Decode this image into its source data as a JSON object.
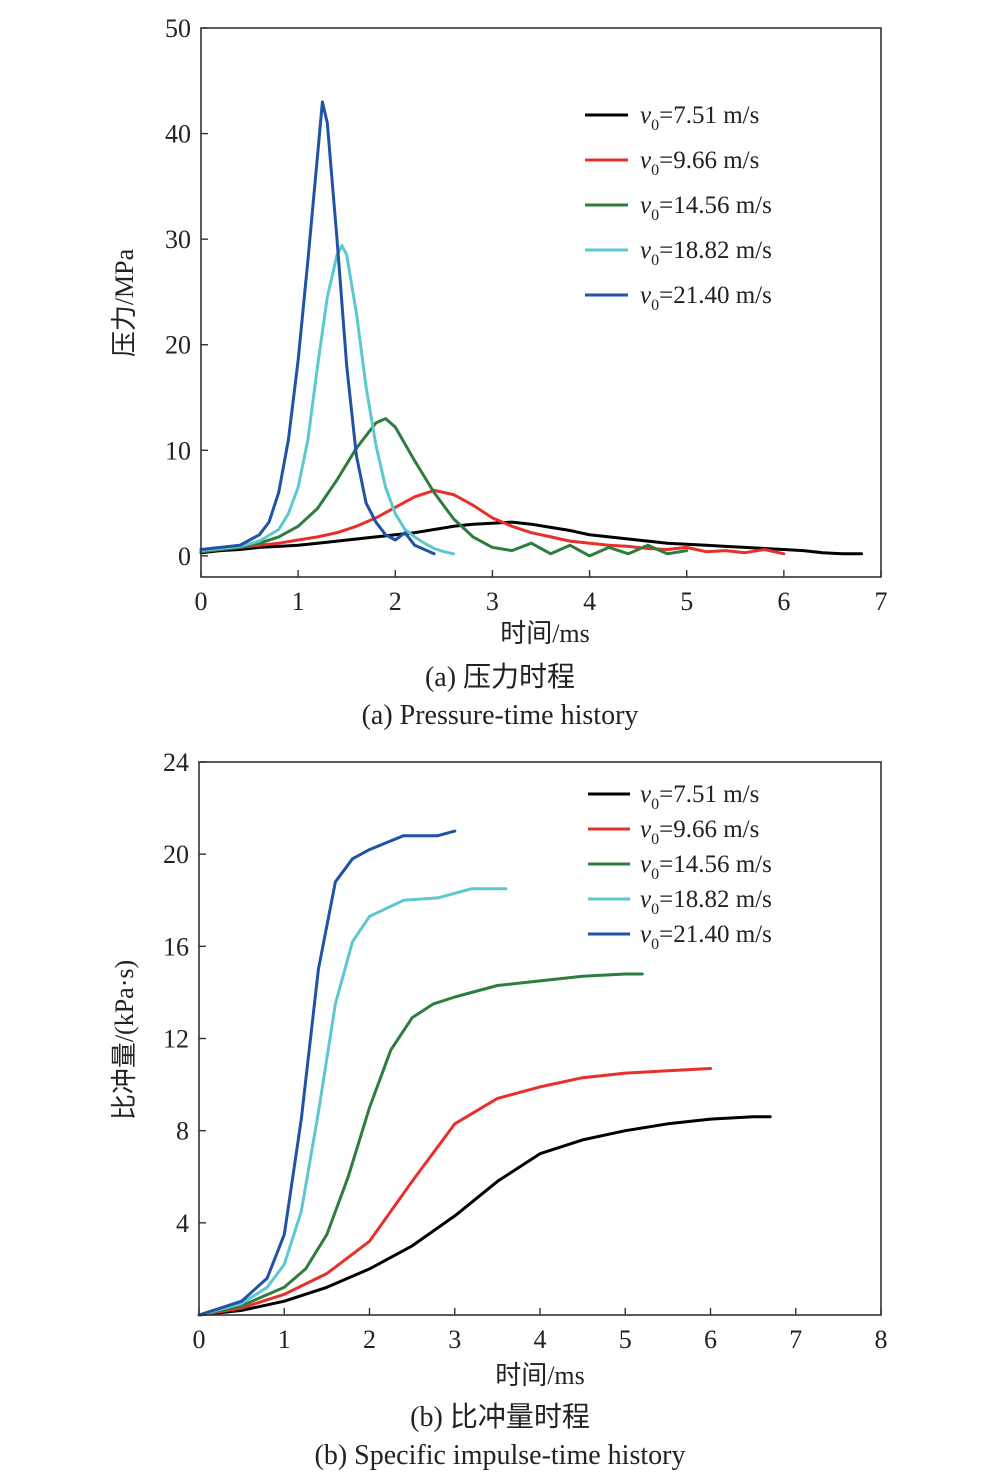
{
  "chart_data": [
    {
      "id": "a",
      "type": "line",
      "xlabel": "时间/ms",
      "ylabel": "压力/MPa",
      "xlim": [
        0,
        7
      ],
      "ylim": [
        -2,
        50
      ],
      "xticks": [
        "0",
        "1",
        "2",
        "3",
        "4",
        "5",
        "6",
        "7"
      ],
      "yticks": [
        "0",
        "10",
        "20",
        "30",
        "40",
        "50"
      ],
      "caption_cn": "(a) 压力时程",
      "caption_en": "(a) Pressure-time history",
      "legend_position": "top-right",
      "grid": false,
      "series": [
        {
          "name": "v0=7.51 m/s",
          "legend_var": "v",
          "legend_sub": "0",
          "legend_rest": "=7.51 m/s",
          "color": "#000000",
          "x": [
            0,
            0.2,
            0.4,
            0.6,
            0.8,
            1.0,
            1.2,
            1.4,
            1.6,
            1.8,
            2.0,
            2.2,
            2.4,
            2.6,
            2.8,
            3.0,
            3.2,
            3.4,
            3.6,
            3.8,
            4.0,
            4.2,
            4.4,
            4.6,
            4.8,
            5.0,
            5.2,
            5.4,
            5.6,
            5.8,
            6.0,
            6.2,
            6.4,
            6.6,
            6.8
          ],
          "y": [
            0.3,
            0.5,
            0.6,
            0.8,
            0.9,
            1.0,
            1.2,
            1.4,
            1.6,
            1.8,
            2.0,
            2.2,
            2.5,
            2.8,
            3.0,
            3.1,
            3.2,
            3.0,
            2.7,
            2.4,
            2.0,
            1.8,
            1.6,
            1.4,
            1.2,
            1.1,
            1.0,
            0.9,
            0.8,
            0.7,
            0.6,
            0.5,
            0.3,
            0.2,
            0.2
          ]
        },
        {
          "name": "v0=9.66 m/s",
          "legend_var": "v",
          "legend_sub": "0",
          "legend_rest": "=9.66 m/s",
          "color": "#e8302b",
          "x": [
            0,
            0.2,
            0.4,
            0.6,
            0.8,
            1.0,
            1.2,
            1.4,
            1.6,
            1.8,
            2.0,
            2.2,
            2.4,
            2.6,
            2.8,
            3.0,
            3.2,
            3.4,
            3.6,
            3.8,
            4.0,
            4.2,
            4.4,
            4.6,
            4.8,
            5.0,
            5.2,
            5.4,
            5.6,
            5.8,
            6.0
          ],
          "y": [
            0.4,
            0.6,
            0.8,
            1.0,
            1.2,
            1.5,
            1.8,
            2.2,
            2.8,
            3.6,
            4.6,
            5.6,
            6.2,
            5.8,
            4.8,
            3.6,
            2.8,
            2.2,
            1.8,
            1.4,
            1.2,
            1.0,
            0.9,
            0.7,
            0.6,
            0.8,
            0.4,
            0.5,
            0.3,
            0.6,
            0.2
          ]
        },
        {
          "name": "v0=14.56 m/s",
          "legend_var": "v",
          "legend_sub": "0",
          "legend_rest": "=14.56 m/s",
          "color": "#2e7d3e",
          "x": [
            0,
            0.2,
            0.4,
            0.6,
            0.8,
            1.0,
            1.2,
            1.4,
            1.6,
            1.8,
            1.9,
            2.0,
            2.2,
            2.4,
            2.6,
            2.8,
            3.0,
            3.2,
            3.4,
            3.6,
            3.8,
            4.0,
            4.2,
            4.4,
            4.6,
            4.8,
            5.0
          ],
          "y": [
            0.4,
            0.6,
            0.8,
            1.2,
            1.8,
            2.8,
            4.5,
            7.2,
            10.2,
            12.6,
            13.0,
            12.2,
            9.0,
            6.0,
            3.5,
            1.8,
            0.8,
            0.5,
            1.2,
            0.2,
            1.0,
            0.0,
            0.8,
            0.2,
            1.0,
            0.2,
            0.5
          ]
        },
        {
          "name": "v0=18.82 m/s",
          "legend_var": "v",
          "legend_sub": "0",
          "legend_rest": "=18.82 m/s",
          "color": "#5ec8d0",
          "x": [
            0,
            0.2,
            0.4,
            0.6,
            0.8,
            0.9,
            1.0,
            1.1,
            1.2,
            1.3,
            1.4,
            1.45,
            1.5,
            1.6,
            1.7,
            1.8,
            1.9,
            2.0,
            2.1,
            2.2,
            2.3,
            2.4,
            2.5,
            2.6
          ],
          "y": [
            0.5,
            0.7,
            0.9,
            1.4,
            2.5,
            4.0,
            6.5,
            11.0,
            18.0,
            24.5,
            28.5,
            29.4,
            28.5,
            23.0,
            16.0,
            10.5,
            6.5,
            4.0,
            2.5,
            1.8,
            1.2,
            0.7,
            0.4,
            0.2
          ]
        },
        {
          "name": "v0=21.40 m/s",
          "legend_var": "v",
          "legend_sub": "0",
          "legend_rest": "=21.40 m/s",
          "color": "#2152a3",
          "x": [
            0,
            0.2,
            0.4,
            0.6,
            0.7,
            0.8,
            0.9,
            1.0,
            1.1,
            1.2,
            1.25,
            1.3,
            1.4,
            1.5,
            1.6,
            1.7,
            1.8,
            1.9,
            2.0,
            2.1,
            2.2,
            2.3,
            2.4
          ],
          "y": [
            0.6,
            0.8,
            1.0,
            2.0,
            3.2,
            6.0,
            11.0,
            18.5,
            28.0,
            38.0,
            43.0,
            41.0,
            30.0,
            18.0,
            9.5,
            5.0,
            3.2,
            2.0,
            1.5,
            2.2,
            1.0,
            0.6,
            0.2
          ]
        }
      ]
    },
    {
      "id": "b",
      "type": "line",
      "xlabel": "时间/ms",
      "ylabel": "比冲量/(kPa·s)",
      "xlim": [
        0,
        8
      ],
      "ylim": [
        0,
        24
      ],
      "xticks": [
        "0",
        "1",
        "2",
        "3",
        "4",
        "5",
        "6",
        "7",
        "8"
      ],
      "yticks": [
        "",
        "4",
        "8",
        "12",
        "16",
        "20",
        "24"
      ],
      "caption_cn": "(b) 比冲量时程",
      "caption_en": "(b) Specific impulse-time history",
      "legend_position": "top-right",
      "grid": false,
      "series": [
        {
          "name": "v0=7.51 m/s",
          "legend_var": "v",
          "legend_sub": "0",
          "legend_rest": "=7.51 m/s",
          "color": "#000000",
          "x": [
            0,
            0.5,
            1.0,
            1.5,
            2.0,
            2.5,
            3.0,
            3.5,
            4.0,
            4.5,
            5.0,
            5.5,
            6.0,
            6.5,
            6.7
          ],
          "y": [
            0,
            0.2,
            0.6,
            1.2,
            2.0,
            3.0,
            4.3,
            5.8,
            7.0,
            7.6,
            8.0,
            8.3,
            8.5,
            8.6,
            8.6
          ]
        },
        {
          "name": "v0=9.66 m/s",
          "legend_var": "v",
          "legend_sub": "0",
          "legend_rest": "=9.66 m/s",
          "color": "#e8302b",
          "x": [
            0,
            0.5,
            1.0,
            1.5,
            2.0,
            2.5,
            3.0,
            3.5,
            4.0,
            4.5,
            5.0,
            5.5,
            6.0
          ],
          "y": [
            0,
            0.3,
            0.9,
            1.8,
            3.2,
            5.8,
            8.3,
            9.4,
            9.9,
            10.3,
            10.5,
            10.6,
            10.7
          ]
        },
        {
          "name": "v0=14.56 m/s",
          "legend_var": "v",
          "legend_sub": "0",
          "legend_rest": "=14.56 m/s",
          "color": "#2e7d3e",
          "x": [
            0,
            0.5,
            1.0,
            1.25,
            1.5,
            1.75,
            2.0,
            2.25,
            2.5,
            2.75,
            3.0,
            3.5,
            4.0,
            4.5,
            5.0,
            5.2
          ],
          "y": [
            0,
            0.4,
            1.2,
            2.0,
            3.5,
            6.0,
            9.0,
            11.5,
            12.9,
            13.5,
            13.8,
            14.3,
            14.5,
            14.7,
            14.8,
            14.8
          ]
        },
        {
          "name": "v0=18.82 m/s",
          "legend_var": "v",
          "legend_sub": "0",
          "legend_rest": "=18.82 m/s",
          "color": "#5ec8d0",
          "x": [
            0,
            0.5,
            0.8,
            1.0,
            1.2,
            1.4,
            1.6,
            1.8,
            2.0,
            2.4,
            2.8,
            3.2,
            3.6
          ],
          "y": [
            0,
            0.5,
            1.2,
            2.2,
            4.5,
            8.8,
            13.5,
            16.2,
            17.3,
            18.0,
            18.1,
            18.5,
            18.5
          ]
        },
        {
          "name": "v0=21.40 m/s",
          "legend_var": "v",
          "legend_sub": "0",
          "legend_rest": "=21.40 m/s",
          "color": "#2152a3",
          "x": [
            0,
            0.5,
            0.8,
            1.0,
            1.2,
            1.4,
            1.6,
            1.8,
            2.0,
            2.4,
            2.8,
            3.0
          ],
          "y": [
            0,
            0.6,
            1.6,
            3.5,
            8.5,
            15.0,
            18.8,
            19.8,
            20.2,
            20.8,
            20.8,
            21.0
          ]
        }
      ]
    }
  ]
}
